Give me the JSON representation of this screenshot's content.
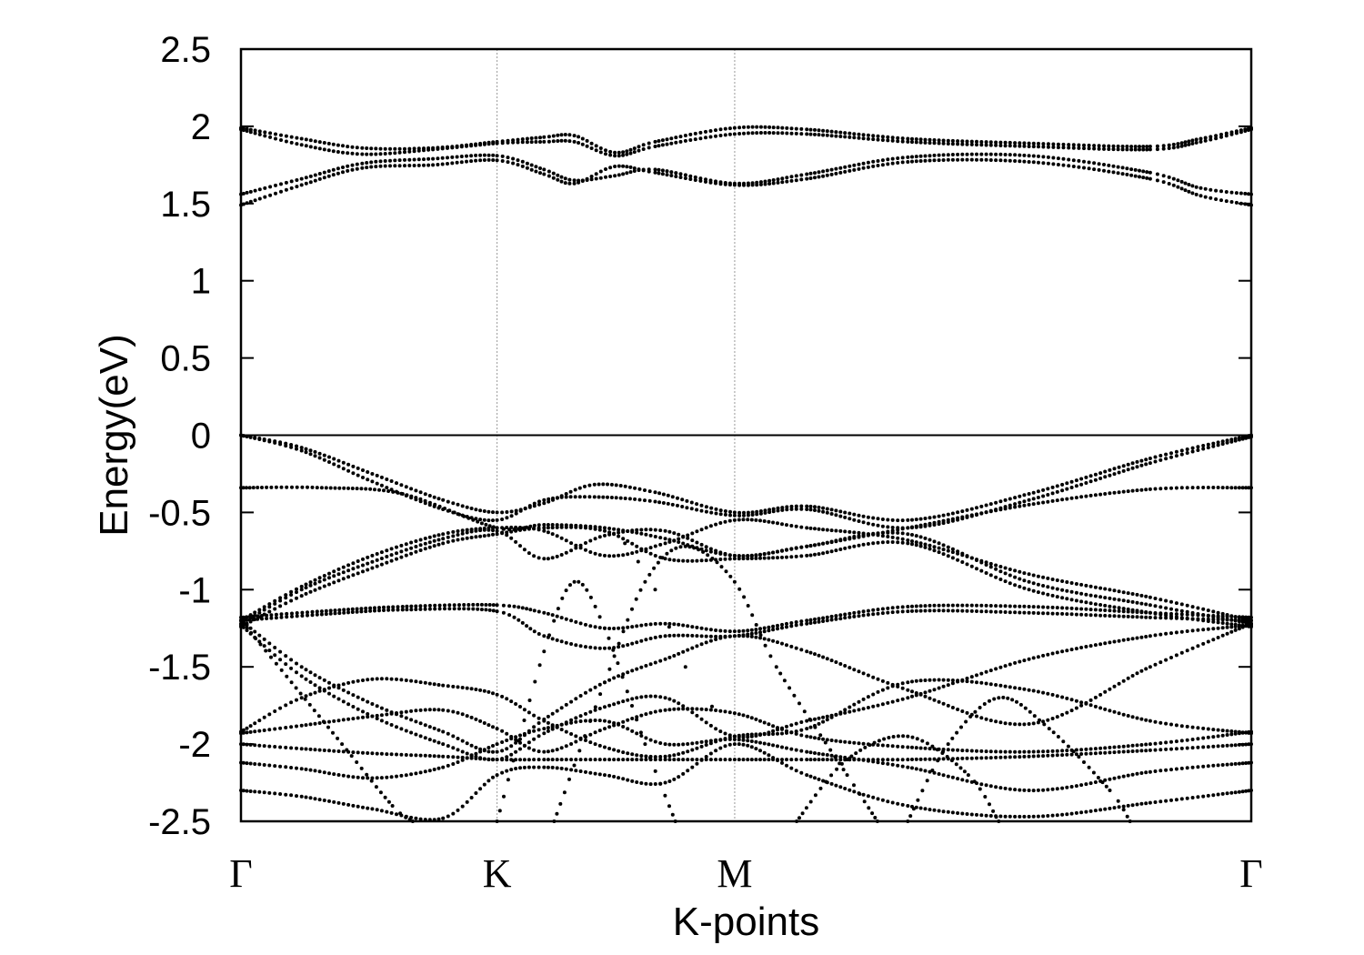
{
  "chart_data": {
    "type": "scatter",
    "title": "",
    "xlabel": "K-points",
    "ylabel": "Energy(eV)",
    "ylim": [
      -2.5,
      2.5
    ],
    "xlim": [
      0,
      1
    ],
    "grid": "vertical lines at high-symmetry points",
    "legend": "none",
    "colors": {
      "points": "#000000",
      "frame": "#000000",
      "vgrid": "#999999"
    },
    "y_ticks": [
      "2.5",
      "2",
      "1.5",
      "1",
      "0.5",
      "0",
      "-0.5",
      "-1",
      "-1.5",
      "-2",
      "-2.5"
    ],
    "y_tick_values": [
      2.5,
      2,
      1.5,
      1,
      0.5,
      0,
      -0.5,
      -1,
      -1.5,
      -2,
      -2.5
    ],
    "high_symmetry_points": [
      {
        "label": "Γ",
        "x": 0
      },
      {
        "label": "K",
        "x": 0.2535
      },
      {
        "label": "M",
        "x": 0.4887
      },
      {
        "label": "Γ",
        "x": 1
      }
    ],
    "fermi_level": 0,
    "bands": [
      [
        [
          0,
          1.99
        ],
        [
          0.06,
          1.92
        ],
        [
          0.12,
          1.86
        ],
        [
          0.19,
          1.86
        ],
        [
          0.2535,
          1.9
        ],
        [
          0.3,
          1.93
        ],
        [
          0.33,
          1.94
        ],
        [
          0.37,
          1.83
        ],
        [
          0.41,
          1.9
        ],
        [
          0.4887,
          1.99
        ],
        [
          0.56,
          1.98
        ],
        [
          0.66,
          1.92
        ],
        [
          0.78,
          1.89
        ],
        [
          0.9,
          1.87
        ],
        [
          0.95,
          1.92
        ],
        [
          1,
          1.99
        ]
      ],
      [
        [
          0,
          1.98
        ],
        [
          0.06,
          1.88
        ],
        [
          0.12,
          1.82
        ],
        [
          0.19,
          1.85
        ],
        [
          0.2535,
          1.89
        ],
        [
          0.3,
          1.9
        ],
        [
          0.33,
          1.9
        ],
        [
          0.37,
          1.81
        ],
        [
          0.41,
          1.87
        ],
        [
          0.4887,
          1.95
        ],
        [
          0.56,
          1.95
        ],
        [
          0.66,
          1.9
        ],
        [
          0.78,
          1.87
        ],
        [
          0.9,
          1.85
        ],
        [
          0.95,
          1.9
        ],
        [
          1,
          1.98
        ]
      ],
      [
        [
          0,
          1.56
        ],
        [
          0.06,
          1.66
        ],
        [
          0.12,
          1.76
        ],
        [
          0.19,
          1.79
        ],
        [
          0.2535,
          1.81
        ],
        [
          0.3,
          1.72
        ],
        [
          0.33,
          1.65
        ],
        [
          0.37,
          1.68
        ],
        [
          0.41,
          1.72
        ],
        [
          0.4887,
          1.63
        ],
        [
          0.56,
          1.69
        ],
        [
          0.66,
          1.8
        ],
        [
          0.78,
          1.81
        ],
        [
          0.9,
          1.7
        ],
        [
          0.95,
          1.6
        ],
        [
          1,
          1.56
        ]
      ],
      [
        [
          0,
          1.49
        ],
        [
          0.06,
          1.62
        ],
        [
          0.12,
          1.73
        ],
        [
          0.19,
          1.75
        ],
        [
          0.2535,
          1.78
        ],
        [
          0.3,
          1.69
        ],
        [
          0.33,
          1.63
        ],
        [
          0.37,
          1.74
        ],
        [
          0.41,
          1.7
        ],
        [
          0.4887,
          1.62
        ],
        [
          0.56,
          1.66
        ],
        [
          0.66,
          1.77
        ],
        [
          0.78,
          1.77
        ],
        [
          0.9,
          1.66
        ],
        [
          0.95,
          1.55
        ],
        [
          1,
          1.49
        ]
      ],
      [
        [
          0,
          0
        ],
        [
          0.06,
          -0.08
        ],
        [
          0.13,
          -0.25
        ],
        [
          0.2,
          -0.42
        ],
        [
          0.2535,
          -0.5
        ],
        [
          0.3,
          -0.44
        ],
        [
          0.35,
          -0.32
        ],
        [
          0.41,
          -0.37
        ],
        [
          0.4887,
          -0.5
        ],
        [
          0.56,
          -0.46
        ],
        [
          0.66,
          -0.55
        ],
        [
          0.78,
          -0.38
        ],
        [
          0.9,
          -0.15
        ],
        [
          1,
          0
        ]
      ],
      [
        [
          0,
          0
        ],
        [
          0.06,
          -0.1
        ],
        [
          0.13,
          -0.3
        ],
        [
          0.2,
          -0.48
        ],
        [
          0.2535,
          -0.55
        ],
        [
          0.3,
          -0.42
        ],
        [
          0.35,
          -0.4
        ],
        [
          0.41,
          -0.43
        ],
        [
          0.4887,
          -0.52
        ],
        [
          0.56,
          -0.48
        ],
        [
          0.66,
          -0.6
        ],
        [
          0.78,
          -0.42
        ],
        [
          0.9,
          -0.18
        ],
        [
          1,
          -0.01
        ]
      ],
      [
        [
          0,
          -0.34
        ],
        [
          0.08,
          -0.34
        ],
        [
          0.16,
          -0.38
        ],
        [
          0.2535,
          -0.6
        ],
        [
          0.3,
          -0.58
        ],
        [
          0.36,
          -0.6
        ],
        [
          0.42,
          -0.67
        ],
        [
          0.4887,
          -0.78
        ],
        [
          0.56,
          -0.72
        ],
        [
          0.66,
          -0.6
        ],
        [
          0.78,
          -0.45
        ],
        [
          0.9,
          -0.35
        ],
        [
          1,
          -0.34
        ]
      ],
      [
        [
          0,
          -1.2
        ],
        [
          0.06,
          -0.98
        ],
        [
          0.13,
          -0.78
        ],
        [
          0.2,
          -0.64
        ],
        [
          0.2535,
          -0.6
        ],
        [
          0.3,
          -0.62
        ],
        [
          0.36,
          -0.78
        ],
        [
          0.42,
          -0.7
        ],
        [
          0.4887,
          -0.55
        ],
        [
          0.56,
          -0.6
        ],
        [
          0.66,
          -0.68
        ],
        [
          0.78,
          -0.9
        ],
        [
          0.9,
          -1.05
        ],
        [
          1,
          -1.2
        ]
      ],
      [
        [
          0,
          -1.22
        ],
        [
          0.06,
          -1.0
        ],
        [
          0.13,
          -0.82
        ],
        [
          0.2,
          -0.67
        ],
        [
          0.2535,
          -0.62
        ],
        [
          0.3,
          -0.8
        ],
        [
          0.36,
          -0.65
        ],
        [
          0.42,
          -0.62
        ],
        [
          0.4887,
          -0.78
        ],
        [
          0.56,
          -0.72
        ],
        [
          0.66,
          -0.64
        ],
        [
          0.78,
          -0.95
        ],
        [
          0.9,
          -1.1
        ],
        [
          1,
          -1.22
        ]
      ],
      [
        [
          0,
          -1.24
        ],
        [
          0.06,
          -1.04
        ],
        [
          0.13,
          -0.86
        ],
        [
          0.2,
          -0.7
        ],
        [
          0.2535,
          -0.64
        ],
        [
          0.3,
          -0.6
        ],
        [
          0.36,
          -0.62
        ],
        [
          0.42,
          -0.8
        ],
        [
          0.4887,
          -0.8
        ],
        [
          0.56,
          -0.78
        ],
        [
          0.66,
          -0.7
        ],
        [
          0.78,
          -1.0
        ],
        [
          0.9,
          -1.15
        ],
        [
          1,
          -1.24
        ]
      ],
      [
        [
          0,
          -1.18
        ],
        [
          0.08,
          -1.14
        ],
        [
          0.16,
          -1.11
        ],
        [
          0.2535,
          -1.1
        ],
        [
          0.3,
          -1.15
        ],
        [
          0.36,
          -1.25
        ],
        [
          0.42,
          -1.22
        ],
        [
          0.4887,
          -1.27
        ],
        [
          0.56,
          -1.2
        ],
        [
          0.66,
          -1.11
        ],
        [
          0.78,
          -1.11
        ],
        [
          0.9,
          -1.15
        ],
        [
          1,
          -1.18
        ]
      ],
      [
        [
          0,
          -1.2
        ],
        [
          0.08,
          -1.16
        ],
        [
          0.16,
          -1.13
        ],
        [
          0.2535,
          -1.14
        ],
        [
          0.3,
          -1.3
        ],
        [
          0.36,
          -1.38
        ],
        [
          0.42,
          -1.3
        ],
        [
          0.4887,
          -1.3
        ],
        [
          0.56,
          -1.22
        ],
        [
          0.66,
          -1.14
        ],
        [
          0.78,
          -1.15
        ],
        [
          0.9,
          -1.18
        ],
        [
          1,
          -1.2
        ]
      ],
      [
        [
          0,
          -1.2
        ],
        [
          0.06,
          -1.5
        ],
        [
          0.13,
          -1.74
        ],
        [
          0.2,
          -1.92
        ],
        [
          0.2535,
          -2.05
        ],
        [
          0.3,
          -1.84
        ],
        [
          0.36,
          -1.6
        ],
        [
          0.42,
          -1.45
        ],
        [
          0.4887,
          -1.3
        ],
        [
          0.56,
          -1.4
        ],
        [
          0.66,
          -1.65
        ],
        [
          0.78,
          -1.87
        ],
        [
          0.9,
          -1.5
        ],
        [
          1,
          -1.22
        ]
      ],
      [
        [
          0,
          -1.23
        ],
        [
          0.06,
          -1.56
        ],
        [
          0.13,
          -1.82
        ],
        [
          0.2,
          -2.0
        ],
        [
          0.2535,
          -2.1
        ],
        [
          0.3,
          -1.93
        ],
        [
          0.36,
          -1.76
        ],
        [
          0.42,
          -1.7
        ],
        [
          0.4887,
          -1.95
        ],
        [
          0.56,
          -1.85
        ],
        [
          0.66,
          -1.7
        ],
        [
          0.78,
          -1.45
        ],
        [
          0.9,
          -1.3
        ],
        [
          1,
          -1.23
        ]
      ],
      [
        [
          0,
          -1.92
        ],
        [
          0.06,
          -1.7
        ],
        [
          0.13,
          -1.58
        ],
        [
          0.2,
          -1.62
        ],
        [
          0.2535,
          -1.68
        ],
        [
          0.3,
          -1.85
        ],
        [
          0.36,
          -2.02
        ],
        [
          0.42,
          -2.08
        ],
        [
          0.4887,
          -1.95
        ],
        [
          0.56,
          -1.9
        ],
        [
          0.66,
          -1.6
        ],
        [
          0.78,
          -1.65
        ],
        [
          0.9,
          -1.85
        ],
        [
          1,
          -1.93
        ]
      ],
      [
        [
          0,
          -1.93
        ],
        [
          0.06,
          -1.88
        ],
        [
          0.13,
          -1.82
        ],
        [
          0.2,
          -1.78
        ],
        [
          0.2535,
          -1.9
        ],
        [
          0.3,
          -2.05
        ],
        [
          0.36,
          -1.9
        ],
        [
          0.42,
          -1.78
        ],
        [
          0.4887,
          -1.8
        ],
        [
          0.56,
          -1.95
        ],
        [
          0.66,
          -2.02
        ],
        [
          0.78,
          -2.05
        ],
        [
          0.9,
          -2.0
        ],
        [
          1,
          -1.92
        ]
      ],
      [
        [
          0,
          -2.0
        ],
        [
          0.06,
          -2.03
        ],
        [
          0.13,
          -2.06
        ],
        [
          0.2,
          -2.08
        ],
        [
          0.2535,
          -2.1
        ],
        [
          0.3,
          -2.1
        ],
        [
          0.36,
          -2.1
        ],
        [
          0.42,
          -2.1
        ],
        [
          0.4887,
          -2.1
        ],
        [
          0.56,
          -2.1
        ],
        [
          0.66,
          -2.1
        ],
        [
          0.78,
          -2.08
        ],
        [
          0.9,
          -2.04
        ],
        [
          1,
          -2.0
        ]
      ],
      [
        [
          0,
          -2.12
        ],
        [
          0.06,
          -2.16
        ],
        [
          0.13,
          -2.22
        ],
        [
          0.2,
          -2.15
        ],
        [
          0.2535,
          -2.0
        ],
        [
          0.3,
          -1.9
        ],
        [
          0.36,
          -1.85
        ],
        [
          0.42,
          -2.0
        ],
        [
          0.4887,
          -1.97
        ],
        [
          0.56,
          -2.05
        ],
        [
          0.66,
          -2.15
        ],
        [
          0.78,
          -2.3
        ],
        [
          0.9,
          -2.18
        ],
        [
          1,
          -2.12
        ]
      ],
      [
        [
          0,
          -2.3
        ],
        [
          0.06,
          -2.34
        ],
        [
          0.13,
          -2.42
        ],
        [
          0.2,
          -2.48
        ],
        [
          0.2535,
          -2.2
        ],
        [
          0.3,
          -2.15
        ],
        [
          0.36,
          -2.2
        ],
        [
          0.42,
          -2.25
        ],
        [
          0.4887,
          -2.0
        ],
        [
          0.56,
          -2.2
        ],
        [
          0.66,
          -2.4
        ],
        [
          0.78,
          -2.47
        ],
        [
          0.9,
          -2.38
        ],
        [
          1,
          -2.3
        ]
      ],
      [
        [
          0,
          -1.2
        ],
        [
          0.05,
          -1.6
        ],
        [
          0.1,
          -2.0
        ],
        [
          0.15,
          -2.4
        ],
        [
          0.17,
          -2.5
        ]
      ],
      [
        [
          0.2535,
          -2.5
        ],
        [
          0.3,
          -1.4
        ],
        [
          0.33,
          -0.95
        ],
        [
          0.36,
          -1.25
        ],
        [
          0.4,
          -2.0
        ],
        [
          0.43,
          -2.5
        ]
      ],
      [
        [
          0.31,
          -2.5
        ],
        [
          0.36,
          -1.6
        ],
        [
          0.4,
          -0.95
        ],
        [
          0.44,
          -0.72
        ],
        [
          0.4887,
          -0.95
        ],
        [
          0.53,
          -1.5
        ],
        [
          0.6,
          -2.2
        ],
        [
          0.63,
          -2.5
        ]
      ],
      [
        [
          0.4887,
          -1.95
        ],
        [
          0.44,
          -1.5
        ],
        [
          0.41,
          -1.0
        ],
        [
          0.38,
          -0.7
        ]
      ],
      [
        [
          0.66,
          -2.5
        ],
        [
          0.7,
          -2.0
        ],
        [
          0.75,
          -1.7
        ],
        [
          0.8,
          -1.9
        ],
        [
          0.86,
          -2.3
        ],
        [
          0.88,
          -2.5
        ]
      ],
      [
        [
          0.55,
          -2.5
        ],
        [
          0.6,
          -2.1
        ],
        [
          0.66,
          -1.95
        ],
        [
          0.72,
          -2.2
        ],
        [
          0.75,
          -2.5
        ]
      ]
    ]
  }
}
